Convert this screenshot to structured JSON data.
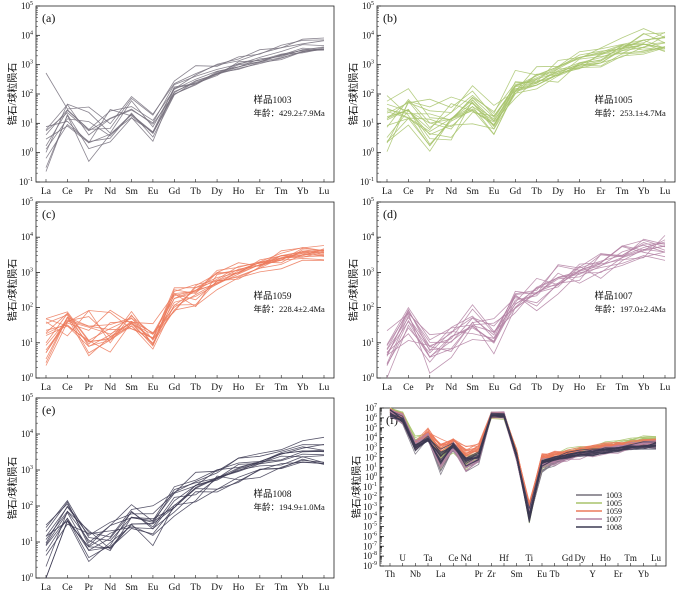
{
  "chart_data": [
    {
      "id": "a",
      "type": "line",
      "panel_label": "(a)",
      "sample_label": "样品1003",
      "age_label": "年龄：429.2±7.9Ma",
      "ylabel": "锆石/球粒陨石",
      "yscale": "log",
      "ylim": [
        0.1,
        100000
      ],
      "categories": [
        "La",
        "Ce",
        "Pr",
        "Nd",
        "Sm",
        "Eu",
        "Gd",
        "Tb",
        "Dy",
        "Ho",
        "Er",
        "Tm",
        "Yb",
        "Lu"
      ],
      "color": "#75707c",
      "n_lines": 12,
      "median": [
        2,
        20,
        4,
        6,
        30,
        7,
        150,
        300,
        600,
        1000,
        1600,
        2500,
        3800,
        4000
      ],
      "spread": [
        1.2,
        0.35,
        0.7,
        0.5,
        0.35,
        0.3,
        0.15,
        0.12,
        0.1,
        0.1,
        0.1,
        0.1,
        0.12,
        0.12
      ]
    },
    {
      "id": "b",
      "type": "line",
      "panel_label": "(b)",
      "sample_label": "样品1005",
      "age_label": "年龄：253.1±4.7Ma",
      "ylabel": "锆石/球粒陨石",
      "yscale": "log",
      "ylim": [
        0.1,
        100000
      ],
      "categories": [
        "La",
        "Ce",
        "Pr",
        "Nd",
        "Sm",
        "Eu",
        "Gd",
        "Tb",
        "Dy",
        "Ho",
        "Er",
        "Tm",
        "Yb",
        "Lu"
      ],
      "color": "#a8c46c",
      "n_lines": 18,
      "median": [
        6,
        25,
        8,
        15,
        50,
        12,
        150,
        300,
        600,
        1100,
        1800,
        3000,
        5000,
        6000
      ],
      "spread": [
        0.8,
        0.4,
        0.55,
        0.4,
        0.35,
        0.35,
        0.3,
        0.25,
        0.22,
        0.2,
        0.2,
        0.22,
        0.25,
        0.25
      ]
    },
    {
      "id": "c",
      "type": "line",
      "panel_label": "(c)",
      "sample_label": "样品1059",
      "age_label": "年龄：228.4±2.4Ma",
      "ylabel": "锆石/球粒陨石",
      "yscale": "log",
      "ylim": [
        1,
        100000
      ],
      "categories": [
        "La",
        "Ce",
        "Pr",
        "Nd",
        "Sm",
        "Eu",
        "Gd",
        "Tb",
        "Dy",
        "Ho",
        "Er",
        "Tm",
        "Yb",
        "Lu"
      ],
      "color": "#ec7a5c",
      "n_lines": 16,
      "median": [
        10,
        40,
        15,
        20,
        40,
        15,
        150,
        300,
        600,
        1000,
        1600,
        2500,
        3500,
        3800
      ],
      "spread": [
        0.8,
        0.45,
        0.6,
        0.5,
        0.3,
        0.35,
        0.3,
        0.25,
        0.2,
        0.15,
        0.12,
        0.1,
        0.1,
        0.1
      ]
    },
    {
      "id": "d",
      "type": "line",
      "panel_label": "(d)",
      "sample_label": "样品1007",
      "age_label": "年龄：197.0±2.4Ma",
      "ylabel": "锆石/球粒陨石",
      "yscale": "log",
      "ylim": [
        1,
        100000
      ],
      "categories": [
        "La",
        "Ce",
        "Pr",
        "Nd",
        "Sm",
        "Eu",
        "Gd",
        "Tb",
        "Dy",
        "Ho",
        "Er",
        "Tm",
        "Yb",
        "Lu"
      ],
      "color": "#b482a4",
      "n_lines": 14,
      "median": [
        3,
        30,
        4,
        8,
        30,
        12,
        100,
        200,
        400,
        700,
        1200,
        2000,
        3000,
        3500
      ],
      "spread": [
        0.5,
        0.45,
        0.45,
        0.4,
        0.35,
        0.35,
        0.3,
        0.3,
        0.28,
        0.28,
        0.28,
        0.3,
        0.3,
        0.3
      ]
    },
    {
      "id": "e",
      "type": "line",
      "panel_label": "(e)",
      "sample_label": "样品1008",
      "age_label": "年龄：194.9±1.0Ma",
      "ylabel": "锆石/球粒陨石",
      "yscale": "log",
      "ylim": [
        1,
        100000
      ],
      "categories": [
        "La",
        "Ce",
        "Pr",
        "Nd",
        "Sm",
        "Eu",
        "Gd",
        "Tb",
        "Dy",
        "Ho",
        "Er",
        "Tm",
        "Yb",
        "Lu"
      ],
      "color": "#3c3a52",
      "n_lines": 14,
      "median": [
        10,
        60,
        10,
        15,
        45,
        30,
        150,
        300,
        600,
        1000,
        1500,
        2200,
        3000,
        3000
      ],
      "spread": [
        0.6,
        0.25,
        0.4,
        0.35,
        0.25,
        0.25,
        0.25,
        0.2,
        0.2,
        0.15,
        0.15,
        0.12,
        0.12,
        0.12
      ]
    },
    {
      "id": "f",
      "type": "line",
      "panel_label": "(f)",
      "ylabel": "锆石/球粒陨石",
      "yscale": "log",
      "ylim": [
        1e-09,
        10000000.0
      ],
      "categories": [
        "Th",
        "U",
        "Nb",
        "Ta",
        "La",
        "Ce",
        "Nd",
        "Pr",
        "Zr",
        "Hf",
        "Sm",
        "Ti",
        "Eu",
        "Tb",
        "Gd",
        "Dy",
        "Y",
        "Ho",
        "Er",
        "Tm",
        "Yb",
        "Lu"
      ],
      "top_labels": [
        "U",
        "Ta",
        "Ce",
        "Nd",
        "Hf",
        "Ti",
        "Gd",
        "Dy",
        "Ho",
        "Tm",
        "Lu"
      ],
      "bottom_labels": [
        "Th",
        "Nb",
        "La",
        "Pr",
        "Zr",
        "Sm",
        "Eu",
        "Tb",
        "Y",
        "Er",
        "Yb"
      ],
      "legend": {
        "position": "right",
        "entries": [
          "1003",
          "1005",
          "1059",
          "1007",
          "1008"
        ]
      },
      "series": [
        {
          "name": "1003",
          "color": "#75707c",
          "n_lines": 12,
          "median": [
            3000000,
            800000,
            1000,
            10000,
            10,
            800,
            10,
            100,
            2000000,
            2000000,
            100,
            0.0001,
            10,
            30,
            100,
            200,
            300,
            500,
            800,
            1200,
            1800,
            2000
          ],
          "spread": [
            0.3,
            0.3,
            0.4,
            0.3,
            0.8,
            0.4,
            0.5,
            0.4,
            0.1,
            0.1,
            0.3,
            0.5,
            0.3,
            0.25,
            0.2,
            0.2,
            0.2,
            0.2,
            0.2,
            0.2,
            0.2,
            0.2
          ]
        },
        {
          "name": "1005",
          "color": "#a8c46c",
          "n_lines": 18,
          "median": [
            8000000,
            2000000,
            3000,
            20000,
            50,
            2000,
            30,
            200,
            2000000,
            2000000,
            300,
            0.0001,
            30,
            100,
            300,
            500,
            800,
            1500,
            2500,
            4000,
            6000,
            7000
          ],
          "spread": [
            0.3,
            0.3,
            0.4,
            0.3,
            0.8,
            0.4,
            0.5,
            0.4,
            0.1,
            0.1,
            0.3,
            0.5,
            0.3,
            0.25,
            0.2,
            0.2,
            0.2,
            0.2,
            0.2,
            0.2,
            0.2,
            0.2
          ]
        },
        {
          "name": "1059",
          "color": "#ec7a5c",
          "n_lines": 16,
          "median": [
            5000000,
            1000000,
            2000,
            30000,
            1000,
            5000,
            300,
            1000,
            2000000,
            2000000,
            300,
            0.001,
            100,
            200,
            300,
            500,
            800,
            1200,
            1800,
            2500,
            3500,
            4000
          ],
          "spread": [
            0.3,
            0.3,
            0.4,
            0.3,
            0.8,
            0.4,
            0.5,
            0.4,
            0.1,
            0.1,
            0.3,
            0.5,
            0.3,
            0.25,
            0.2,
            0.2,
            0.2,
            0.2,
            0.2,
            0.2,
            0.2,
            0.2
          ]
        },
        {
          "name": "1007",
          "color": "#b482a4",
          "n_lines": 14,
          "median": [
            4000000,
            900000,
            1500,
            8000,
            20,
            1000,
            20,
            80,
            2000000,
            2000000,
            100,
            0.0001,
            20,
            40,
            100,
            200,
            300,
            500,
            800,
            1300,
            2000,
            2500
          ],
          "spread": [
            0.3,
            0.3,
            0.4,
            0.3,
            0.8,
            0.4,
            0.5,
            0.4,
            0.1,
            0.1,
            0.3,
            0.5,
            0.3,
            0.25,
            0.2,
            0.2,
            0.2,
            0.2,
            0.2,
            0.2,
            0.2,
            0.2
          ]
        },
        {
          "name": "1008",
          "color": "#3c3a52",
          "n_lines": 14,
          "median": [
            3000000,
            700000,
            1000,
            7000,
            100,
            2000,
            50,
            150,
            2000000,
            2000000,
            150,
            0.0001,
            40,
            80,
            150,
            250,
            350,
            500,
            800,
            1100,
            1600,
            1800
          ],
          "spread": [
            0.3,
            0.3,
            0.4,
            0.3,
            0.8,
            0.4,
            0.5,
            0.4,
            0.1,
            0.1,
            0.3,
            0.5,
            0.3,
            0.25,
            0.2,
            0.2,
            0.2,
            0.2,
            0.2,
            0.2,
            0.2,
            0.2
          ]
        }
      ]
    }
  ]
}
